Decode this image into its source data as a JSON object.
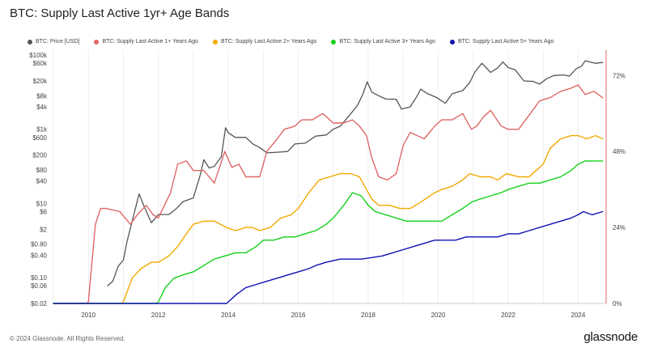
{
  "header": {
    "title": "BTC: Supply Last Active 1yr+ Age Bands"
  },
  "footer": {
    "copyright": "© 2024 Glassnode. All Rights Reserved.",
    "logo": "glassnode"
  },
  "colors": {
    "price": "#555555",
    "y1": "#e06767",
    "y2": "#f2a900",
    "y3": "#15d11a",
    "y5": "#0e12b0",
    "grid": "#ededed",
    "right_axis_line": "#e06767"
  },
  "chart_data": {
    "type": "line",
    "title": "BTC: Supply Last Active 1yr+ Age Bands",
    "xlabel": "",
    "ylabel_left": "",
    "ylabel_right": "",
    "x_ticks": [
      "2010",
      "2012",
      "2014",
      "2016",
      "2018",
      "2020",
      "2022",
      "2024"
    ],
    "left_axis_ticks": [
      "$100k",
      "$60k",
      "$20k",
      "$8k",
      "$4k",
      "$1k",
      "$600",
      "$200",
      "$80",
      "$40",
      "$10",
      "$6",
      "$2",
      "$0.80",
      "$0.40",
      "$0.10",
      "$0.06",
      "$0.02"
    ],
    "left_axis_scale": "log",
    "left_axis_range": [
      0.02,
      100000
    ],
    "right_axis_ticks": [
      "72%",
      "48%",
      "24%",
      "0%"
    ],
    "right_axis_range": [
      0,
      0.8
    ],
    "grid": "vertical",
    "legend_position": "top-left",
    "series": [
      {
        "name": "BTC: Price [USD]",
        "axis": "left",
        "color": "#555555",
        "points": [
          [
            2010.55,
            0.06
          ],
          [
            2010.7,
            0.08
          ],
          [
            2010.85,
            0.2
          ],
          [
            2011.0,
            0.3
          ],
          [
            2011.1,
            0.9
          ],
          [
            2011.3,
            5
          ],
          [
            2011.45,
            18
          ],
          [
            2011.6,
            8
          ],
          [
            2011.8,
            3
          ],
          [
            2012.0,
            5
          ],
          [
            2012.3,
            5
          ],
          [
            2012.5,
            7
          ],
          [
            2012.7,
            11
          ],
          [
            2012.9,
            13
          ],
          [
            2013.0,
            14
          ],
          [
            2013.2,
            60
          ],
          [
            2013.3,
            150
          ],
          [
            2013.45,
            90
          ],
          [
            2013.6,
            100
          ],
          [
            2013.8,
            180
          ],
          [
            2013.92,
            1100
          ],
          [
            2014.0,
            800
          ],
          [
            2014.2,
            600
          ],
          [
            2014.5,
            600
          ],
          [
            2014.7,
            400
          ],
          [
            2014.9,
            320
          ],
          [
            2015.1,
            230
          ],
          [
            2015.4,
            240
          ],
          [
            2015.7,
            250
          ],
          [
            2015.9,
            400
          ],
          [
            2016.2,
            420
          ],
          [
            2016.5,
            650
          ],
          [
            2016.8,
            700
          ],
          [
            2017.0,
            1000
          ],
          [
            2017.2,
            1200
          ],
          [
            2017.5,
            2600
          ],
          [
            2017.7,
            4500
          ],
          [
            2017.85,
            9000
          ],
          [
            2017.97,
            19000
          ],
          [
            2018.1,
            10000
          ],
          [
            2018.3,
            8000
          ],
          [
            2018.5,
            6500
          ],
          [
            2018.8,
            6400
          ],
          [
            2018.95,
            3500
          ],
          [
            2019.2,
            4000
          ],
          [
            2019.4,
            8000
          ],
          [
            2019.5,
            12000
          ],
          [
            2019.7,
            9000
          ],
          [
            2019.95,
            7200
          ],
          [
            2020.2,
            5000
          ],
          [
            2020.4,
            9000
          ],
          [
            2020.7,
            11000
          ],
          [
            2020.9,
            18000
          ],
          [
            2021.05,
            35000
          ],
          [
            2021.25,
            60000
          ],
          [
            2021.5,
            34000
          ],
          [
            2021.7,
            45000
          ],
          [
            2021.85,
            65000
          ],
          [
            2022.0,
            46000
          ],
          [
            2022.2,
            40000
          ],
          [
            2022.45,
            20000
          ],
          [
            2022.7,
            19500
          ],
          [
            2022.9,
            16500
          ],
          [
            2023.1,
            23000
          ],
          [
            2023.3,
            28000
          ],
          [
            2023.6,
            29000
          ],
          [
            2023.75,
            27000
          ],
          [
            2023.95,
            43000
          ],
          [
            2024.1,
            50000
          ],
          [
            2024.2,
            70000
          ],
          [
            2024.5,
            60000
          ],
          [
            2024.7,
            63000
          ]
        ]
      },
      {
        "name": "BTC: Supply Last Active 1+ Years Ago",
        "axis": "right",
        "color": "#e06767",
        "points": [
          [
            2009.0,
            0
          ],
          [
            2009.95,
            0
          ],
          [
            2010.0,
            0.005
          ],
          [
            2010.2,
            0.25
          ],
          [
            2010.35,
            0.3
          ],
          [
            2010.5,
            0.3
          ],
          [
            2010.9,
            0.29
          ],
          [
            2011.2,
            0.25
          ],
          [
            2011.4,
            0.28
          ],
          [
            2011.65,
            0.31
          ],
          [
            2011.85,
            0.28
          ],
          [
            2012.0,
            0.27
          ],
          [
            2012.35,
            0.35
          ],
          [
            2012.55,
            0.44
          ],
          [
            2012.8,
            0.45
          ],
          [
            2013.0,
            0.42
          ],
          [
            2013.3,
            0.42
          ],
          [
            2013.6,
            0.38
          ],
          [
            2013.9,
            0.48
          ],
          [
            2014.1,
            0.43
          ],
          [
            2014.3,
            0.44
          ],
          [
            2014.5,
            0.4
          ],
          [
            2014.7,
            0.4
          ],
          [
            2014.9,
            0.4
          ],
          [
            2015.1,
            0.48
          ],
          [
            2015.4,
            0.52
          ],
          [
            2015.6,
            0.55
          ],
          [
            2015.9,
            0.56
          ],
          [
            2016.1,
            0.58
          ],
          [
            2016.4,
            0.58
          ],
          [
            2016.7,
            0.6
          ],
          [
            2017.0,
            0.57
          ],
          [
            2017.3,
            0.57
          ],
          [
            2017.55,
            0.58
          ],
          [
            2017.75,
            0.56
          ],
          [
            2017.95,
            0.53
          ],
          [
            2018.1,
            0.46
          ],
          [
            2018.3,
            0.4
          ],
          [
            2018.55,
            0.39
          ],
          [
            2018.8,
            0.41
          ],
          [
            2019.0,
            0.5
          ],
          [
            2019.2,
            0.54
          ],
          [
            2019.4,
            0.53
          ],
          [
            2019.6,
            0.52
          ],
          [
            2019.9,
            0.56
          ],
          [
            2020.1,
            0.58
          ],
          [
            2020.4,
            0.58
          ],
          [
            2020.7,
            0.6
          ],
          [
            2020.95,
            0.55
          ],
          [
            2021.1,
            0.56
          ],
          [
            2021.3,
            0.59
          ],
          [
            2021.5,
            0.61
          ],
          [
            2021.8,
            0.56
          ],
          [
            2022.0,
            0.55
          ],
          [
            2022.3,
            0.55
          ],
          [
            2022.5,
            0.58
          ],
          [
            2022.7,
            0.61
          ],
          [
            2022.9,
            0.64
          ],
          [
            2023.2,
            0.65
          ],
          [
            2023.5,
            0.67
          ],
          [
            2023.8,
            0.68
          ],
          [
            2024.0,
            0.69
          ],
          [
            2024.2,
            0.66
          ],
          [
            2024.45,
            0.67
          ],
          [
            2024.7,
            0.65
          ]
        ]
      },
      {
        "name": "BTC: Supply Last Active 2+ Years Ago",
        "axis": "right",
        "color": "#f2a900",
        "points": [
          [
            2009.0,
            0
          ],
          [
            2010.95,
            0
          ],
          [
            2011.0,
            0.005
          ],
          [
            2011.25,
            0.08
          ],
          [
            2011.5,
            0.11
          ],
          [
            2011.8,
            0.13
          ],
          [
            2012.0,
            0.13
          ],
          [
            2012.3,
            0.15
          ],
          [
            2012.55,
            0.18
          ],
          [
            2012.8,
            0.22
          ],
          [
            2013.0,
            0.25
          ],
          [
            2013.3,
            0.26
          ],
          [
            2013.6,
            0.26
          ],
          [
            2013.95,
            0.24
          ],
          [
            2014.2,
            0.23
          ],
          [
            2014.5,
            0.24
          ],
          [
            2014.7,
            0.24
          ],
          [
            2014.9,
            0.23
          ],
          [
            2015.2,
            0.24
          ],
          [
            2015.5,
            0.27
          ],
          [
            2015.8,
            0.28
          ],
          [
            2016.0,
            0.3
          ],
          [
            2016.3,
            0.35
          ],
          [
            2016.6,
            0.39
          ],
          [
            2016.9,
            0.4
          ],
          [
            2017.2,
            0.41
          ],
          [
            2017.5,
            0.41
          ],
          [
            2017.75,
            0.4
          ],
          [
            2017.95,
            0.36
          ],
          [
            2018.1,
            0.33
          ],
          [
            2018.3,
            0.31
          ],
          [
            2018.6,
            0.31
          ],
          [
            2018.9,
            0.3
          ],
          [
            2019.2,
            0.3
          ],
          [
            2019.5,
            0.32
          ],
          [
            2019.9,
            0.35
          ],
          [
            2020.1,
            0.36
          ],
          [
            2020.4,
            0.37
          ],
          [
            2020.7,
            0.39
          ],
          [
            2020.9,
            0.41
          ],
          [
            2021.2,
            0.4
          ],
          [
            2021.5,
            0.4
          ],
          [
            2021.7,
            0.39
          ],
          [
            2021.95,
            0.41
          ],
          [
            2022.3,
            0.4
          ],
          [
            2022.6,
            0.4
          ],
          [
            2022.8,
            0.42
          ],
          [
            2023.0,
            0.44
          ],
          [
            2023.2,
            0.49
          ],
          [
            2023.5,
            0.52
          ],
          [
            2023.8,
            0.53
          ],
          [
            2024.0,
            0.53
          ],
          [
            2024.25,
            0.52
          ],
          [
            2024.5,
            0.53
          ],
          [
            2024.7,
            0.52
          ]
        ]
      },
      {
        "name": "BTC: Supply Last Active 3+ Years Ago",
        "axis": "right",
        "color": "#15d11a",
        "points": [
          [
            2009.0,
            0
          ],
          [
            2011.95,
            0
          ],
          [
            2012.0,
            0.005
          ],
          [
            2012.2,
            0.05
          ],
          [
            2012.45,
            0.08
          ],
          [
            2012.7,
            0.09
          ],
          [
            2013.0,
            0.1
          ],
          [
            2013.3,
            0.12
          ],
          [
            2013.6,
            0.14
          ],
          [
            2013.9,
            0.15
          ],
          [
            2014.2,
            0.16
          ],
          [
            2014.5,
            0.16
          ],
          [
            2014.8,
            0.18
          ],
          [
            2015.0,
            0.2
          ],
          [
            2015.3,
            0.2
          ],
          [
            2015.6,
            0.21
          ],
          [
            2015.9,
            0.21
          ],
          [
            2016.2,
            0.22
          ],
          [
            2016.5,
            0.23
          ],
          [
            2016.8,
            0.25
          ],
          [
            2017.0,
            0.27
          ],
          [
            2017.3,
            0.31
          ],
          [
            2017.55,
            0.35
          ],
          [
            2017.8,
            0.34
          ],
          [
            2018.0,
            0.31
          ],
          [
            2018.2,
            0.29
          ],
          [
            2018.5,
            0.28
          ],
          [
            2018.8,
            0.27
          ],
          [
            2019.1,
            0.26
          ],
          [
            2019.4,
            0.26
          ],
          [
            2019.8,
            0.26
          ],
          [
            2020.1,
            0.26
          ],
          [
            2020.4,
            0.28
          ],
          [
            2020.7,
            0.3
          ],
          [
            2020.95,
            0.32
          ],
          [
            2021.2,
            0.33
          ],
          [
            2021.5,
            0.34
          ],
          [
            2021.8,
            0.35
          ],
          [
            2022.0,
            0.36
          ],
          [
            2022.3,
            0.37
          ],
          [
            2022.6,
            0.38
          ],
          [
            2022.9,
            0.38
          ],
          [
            2023.2,
            0.39
          ],
          [
            2023.5,
            0.4
          ],
          [
            2023.8,
            0.42
          ],
          [
            2024.0,
            0.44
          ],
          [
            2024.2,
            0.45
          ],
          [
            2024.45,
            0.45
          ],
          [
            2024.7,
            0.45
          ]
        ]
      },
      {
        "name": "BTC: Supply Last Active 5+ Years Ago",
        "axis": "right",
        "color": "#0e12b0",
        "points": [
          [
            2009.0,
            0
          ],
          [
            2013.95,
            0
          ],
          [
            2014.0,
            0.005
          ],
          [
            2014.25,
            0.03
          ],
          [
            2014.5,
            0.05
          ],
          [
            2014.8,
            0.06
          ],
          [
            2015.1,
            0.07
          ],
          [
            2015.4,
            0.08
          ],
          [
            2015.7,
            0.09
          ],
          [
            2016.0,
            0.1
          ],
          [
            2016.3,
            0.11
          ],
          [
            2016.5,
            0.12
          ],
          [
            2016.8,
            0.13
          ],
          [
            2017.2,
            0.14
          ],
          [
            2017.5,
            0.14
          ],
          [
            2017.8,
            0.14
          ],
          [
            2018.1,
            0.145
          ],
          [
            2018.4,
            0.15
          ],
          [
            2018.7,
            0.16
          ],
          [
            2019.0,
            0.17
          ],
          [
            2019.3,
            0.18
          ],
          [
            2019.6,
            0.19
          ],
          [
            2019.9,
            0.2
          ],
          [
            2020.2,
            0.2
          ],
          [
            2020.5,
            0.2
          ],
          [
            2020.8,
            0.21
          ],
          [
            2021.1,
            0.21
          ],
          [
            2021.4,
            0.21
          ],
          [
            2021.7,
            0.21
          ],
          [
            2022.0,
            0.22
          ],
          [
            2022.3,
            0.22
          ],
          [
            2022.6,
            0.23
          ],
          [
            2022.9,
            0.24
          ],
          [
            2023.2,
            0.25
          ],
          [
            2023.5,
            0.26
          ],
          [
            2023.8,
            0.27
          ],
          [
            2024.0,
            0.28
          ],
          [
            2024.15,
            0.29
          ],
          [
            2024.4,
            0.28
          ],
          [
            2024.7,
            0.29
          ]
        ]
      }
    ]
  }
}
